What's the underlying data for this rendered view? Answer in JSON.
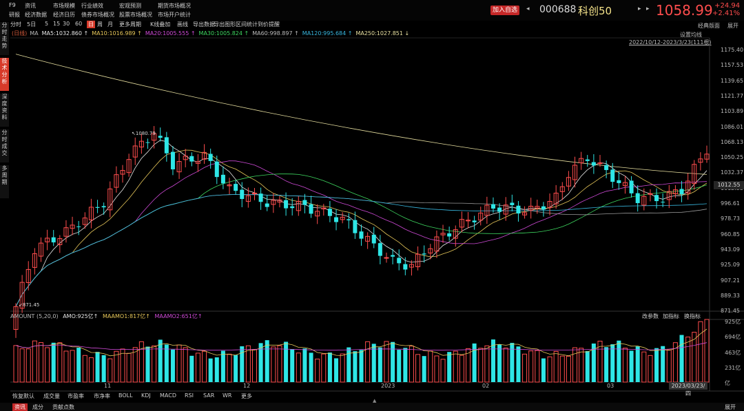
{
  "app": {
    "label": "F9"
  },
  "menus": [
    [
      "资讯",
      "研报"
    ],
    [
      "市场规模",
      "经济数据"
    ],
    [
      "行业绩效",
      "经济日历"
    ],
    [
      "宏观预测",
      "债券市场概况"
    ],
    [
      "市场开户统计",
      "股票市场概况"
    ],
    [
      "期货市场概况",
      ""
    ]
  ],
  "header": {
    "add_watch": "加入自选",
    "code": "000688",
    "name": "科创50",
    "price": "1058.99",
    "change": "+24.94",
    "change_pct": "+2.41%",
    "colors": {
      "up": "#ff4d4d",
      "name": "#f4e28a",
      "accent": "#c62828"
    }
  },
  "sidebar": [
    "分时走势",
    "技术分析",
    "深度资料",
    "分时成交",
    "多周期"
  ],
  "toolbar": [
    "分时",
    "5日",
    "5",
    "15",
    "30",
    "60",
    "日",
    "周",
    "月",
    "更多周期",
    "K线叠加",
    "画线",
    "导出数据",
    "导出图形",
    "区间统计",
    "到价提醒"
  ],
  "toolbar_active": "日",
  "ma_header": {
    "period": "(日线)",
    "prefix": "MA",
    "items": [
      {
        "text": "MA5:1032.860 ↑",
        "color": "#e8e8e8"
      },
      {
        "text": "MA10:1016.989 ↑",
        "color": "#e8c85a"
      },
      {
        "text": "MA20:1005.555 ↑",
        "color": "#d04ad8"
      },
      {
        "text": "MA30:1005.824 ↑",
        "color": "#3ed860"
      },
      {
        "text": "MA60:998.897 ↑",
        "color": "#bdbdbd"
      },
      {
        "text": "MA120:995.684 ↑",
        "color": "#38b8e0"
      },
      {
        "text": "MA250:1027.851 ↓",
        "color": "#e8e0a0"
      }
    ]
  },
  "right_top": {
    "classic": "经典版面",
    "expand": "展开",
    "settings": "设置均线",
    "range": "2022/10/12-2023/3/23(111根)"
  },
  "price_axis": [
    "1175.40",
    "1157.53",
    "1139.65",
    "1121.77",
    "1103.89",
    "1086.01",
    "1068.13",
    "1050.25",
    "1032.37",
    "1012.55",
    "996.61",
    "978.73",
    "960.85",
    "943.09",
    "925.09",
    "907.21",
    "889.33",
    "871.45"
  ],
  "current_price_label": "1012.55",
  "annotations": {
    "high": "1080.79",
    "low": "871.45"
  },
  "volume": {
    "header": "AMOUNT",
    "params": "(5,20,0)",
    "amo": "AMO:925亿↑",
    "ma1": "MAAMO1:817亿↑",
    "ma2": "MAAMO2:651亿↑",
    "buttons": [
      "改参数",
      "加指标",
      "换指标"
    ],
    "axis": [
      "925亿",
      "694亿",
      "463亿",
      "231亿",
      "亿"
    ],
    "colors": {
      "amo": "#e8e8e8",
      "ma1": "#e8c85a",
      "ma2": "#d04ad8"
    }
  },
  "x_axis": [
    "11",
    "12",
    "2023",
    "02",
    "03"
  ],
  "last_date": "2023/03/23/四",
  "indicator_tabs": [
    "恢复默认",
    "成交量",
    "市盈率",
    "市净率",
    "BOLL",
    "KDJ",
    "MACD",
    "RSI",
    "SAR",
    "WR",
    "更多"
  ],
  "bottom_tabs": [
    "资讯",
    "成分",
    "贡献点数"
  ],
  "bottom_expand": "展开",
  "chart_data": {
    "type": "candlestick",
    "x_range": [
      "2022/10/12",
      "2023/3/23"
    ],
    "bars": 111,
    "y_range": [
      871.45,
      1175.4
    ],
    "high": 1080.79,
    "low": 871.45,
    "last_close": 1058.99,
    "ma": {
      "MA5": 1032.86,
      "MA10": 1016.989,
      "MA20": 1005.555,
      "MA30": 1005.824,
      "MA60": 998.897,
      "MA120": 995.684,
      "MA250": 1027.851
    },
    "amount_last": 925,
    "amount_ma1": 817,
    "amount_ma2": 651
  }
}
